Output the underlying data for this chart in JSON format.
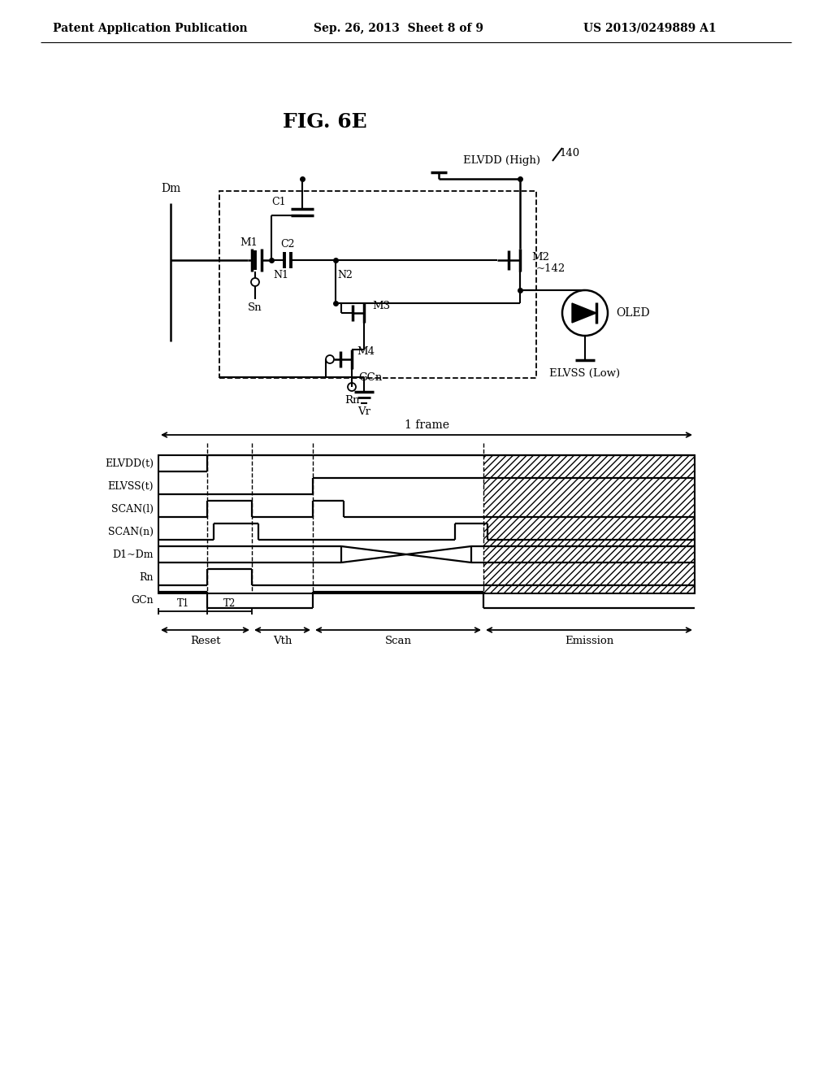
{
  "patent_left": "Patent Application Publication",
  "patent_mid": "Sep. 26, 2013  Sheet 8 of 9",
  "patent_right": "US 2013/0249889 A1",
  "fig_title": "FIG. 6E",
  "bg_color": "#ffffff",
  "signal_names": [
    "ELVDD(t)",
    "ELVSS(t)",
    "SCAN(l)",
    "SCAN(n)",
    "D1~Dm",
    "Rn",
    "GCn"
  ],
  "phase_labels": [
    "Reset",
    "Vth",
    "Scan",
    "Emission"
  ],
  "timing_label": "1 frame"
}
